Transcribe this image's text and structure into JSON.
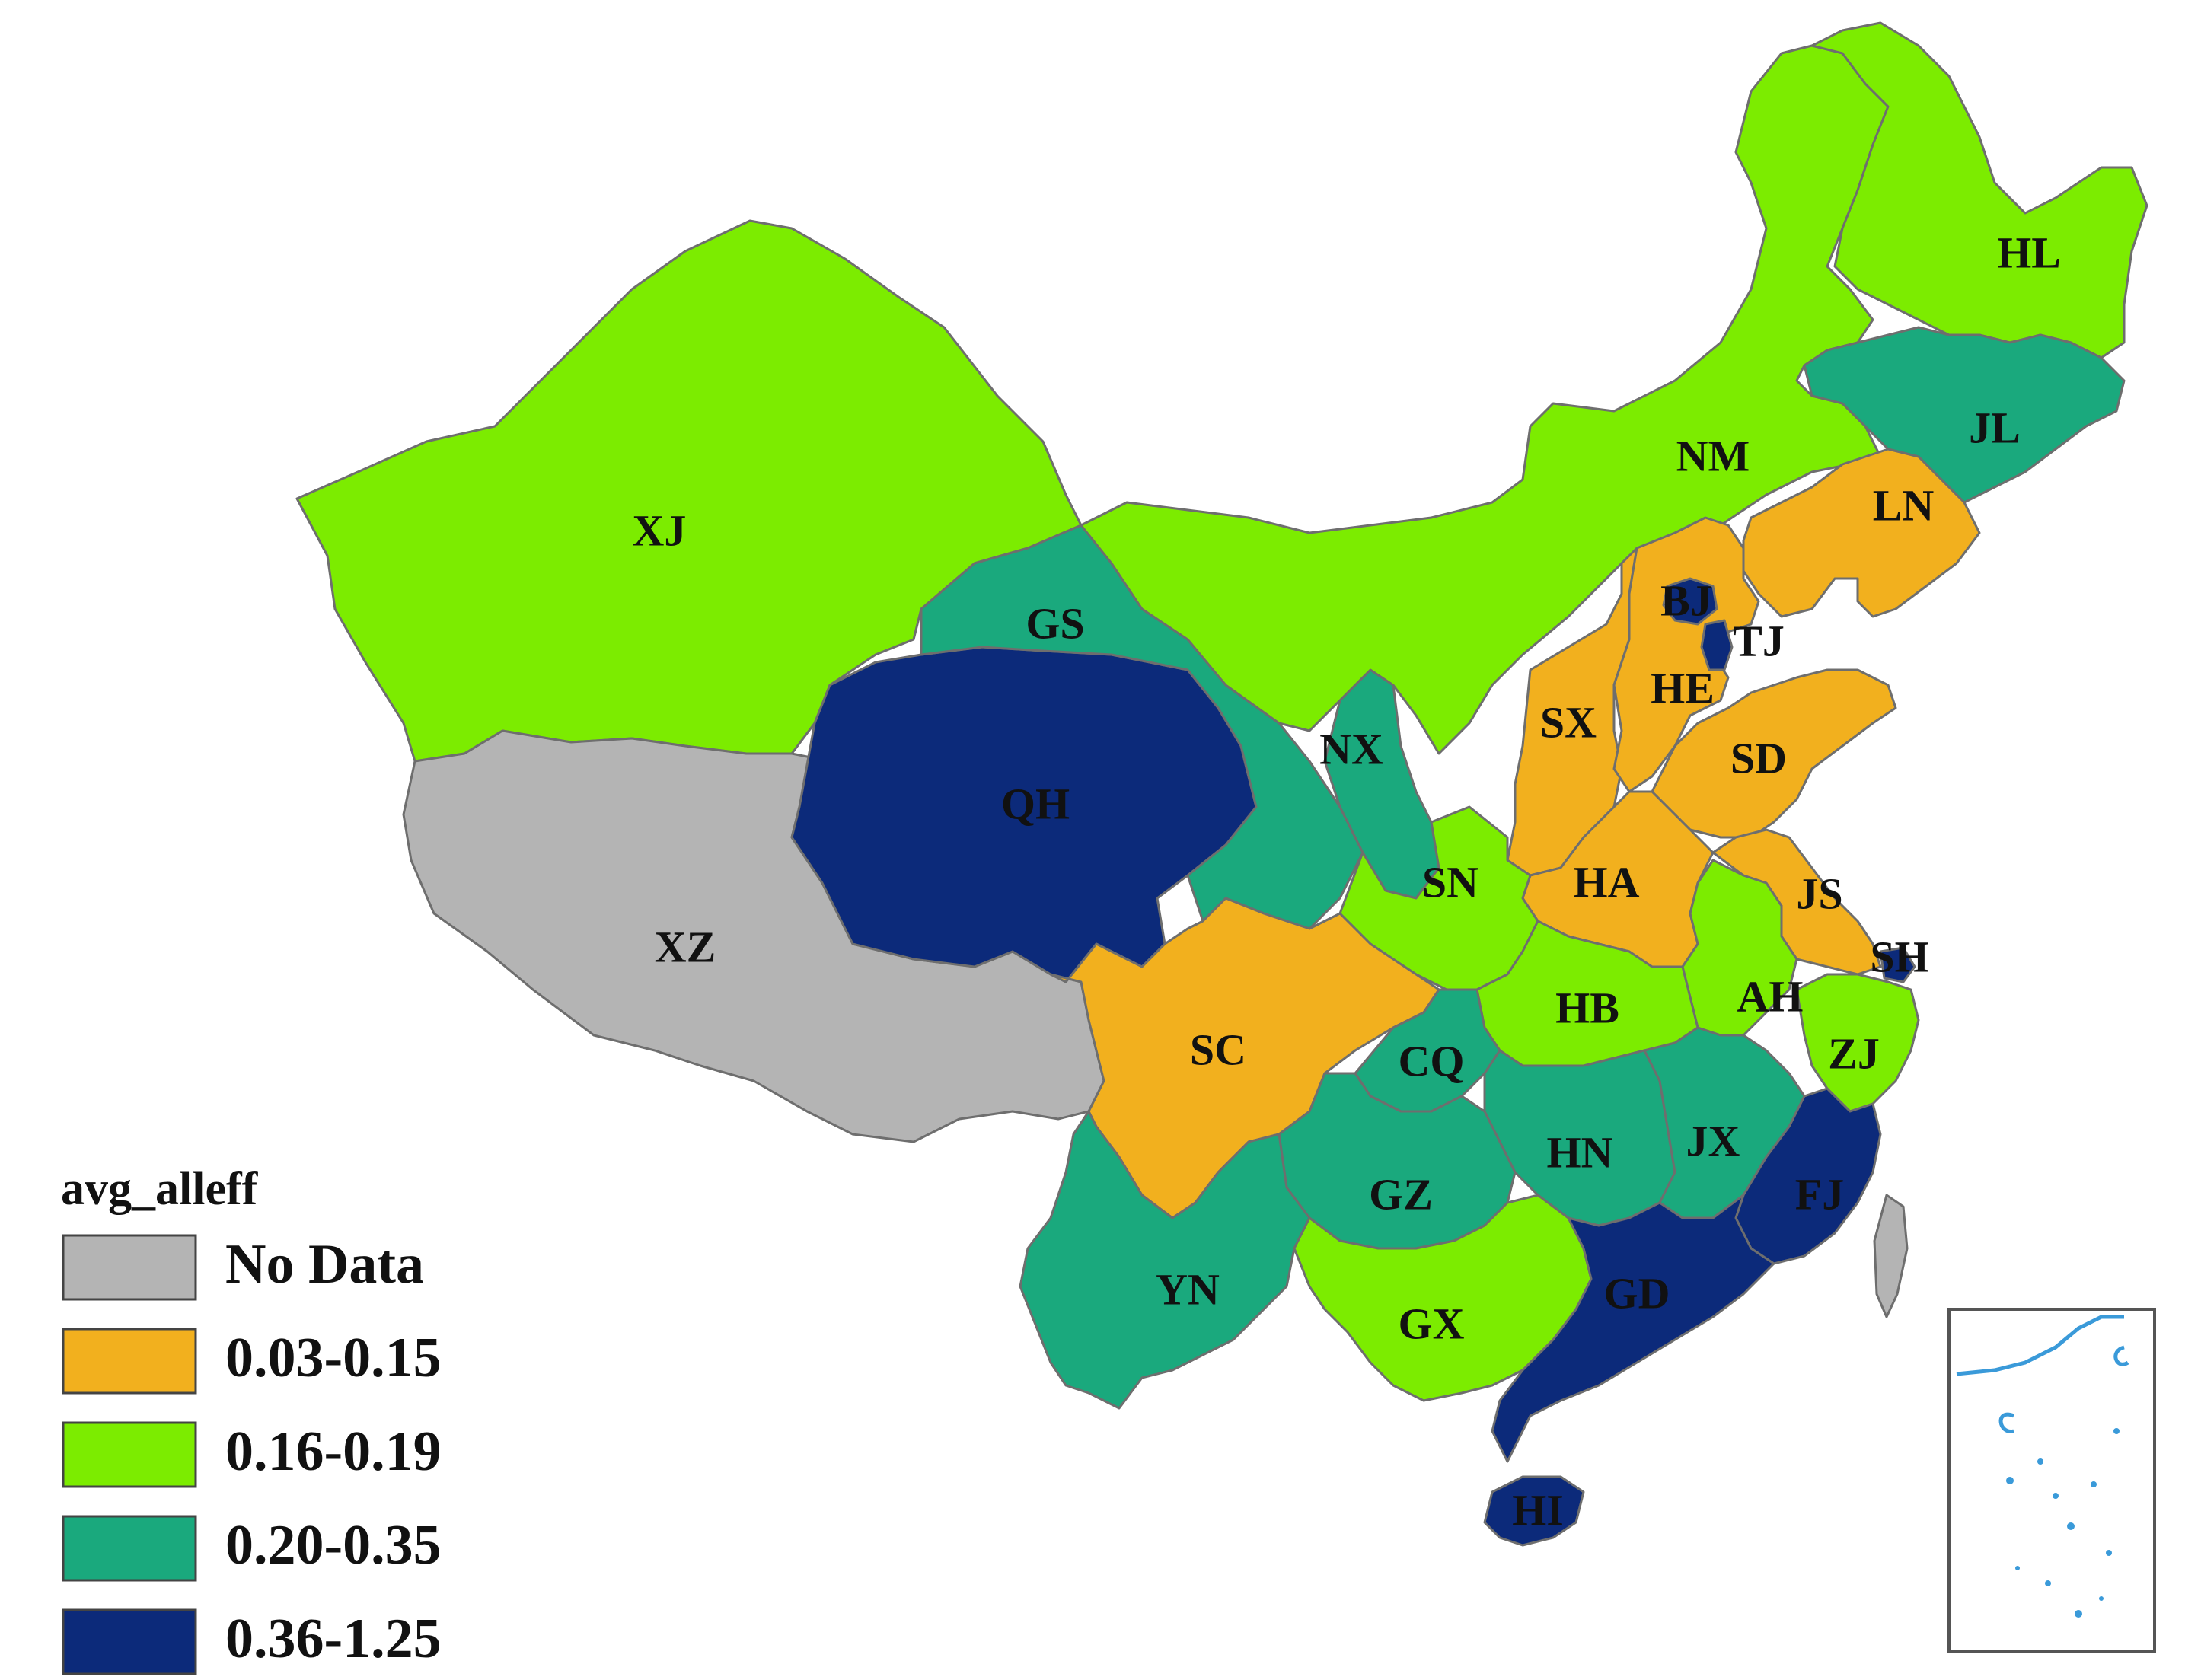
{
  "map": {
    "colors": {
      "no_data": "#b4b4b4",
      "c1": "#f2b01e",
      "c2": "#7cec00",
      "c3": "#1aa97d",
      "c4": "#0c2a7a"
    },
    "provinces": [
      {
        "code": "HL",
        "class": "c2"
      },
      {
        "code": "JL",
        "class": "c3"
      },
      {
        "code": "LN",
        "class": "c1"
      },
      {
        "code": "NM",
        "class": "c2"
      },
      {
        "code": "XJ",
        "class": "c2"
      },
      {
        "code": "XZ",
        "class": "no_data"
      },
      {
        "code": "QH",
        "class": "c4"
      },
      {
        "code": "GS",
        "class": "c3"
      },
      {
        "code": "NX",
        "class": "c3"
      },
      {
        "code": "SN",
        "class": "c2"
      },
      {
        "code": "SX",
        "class": "c1"
      },
      {
        "code": "HE",
        "class": "c1"
      },
      {
        "code": "BJ",
        "class": "c4"
      },
      {
        "code": "TJ",
        "class": "c4"
      },
      {
        "code": "SD",
        "class": "c1"
      },
      {
        "code": "HA",
        "class": "c1"
      },
      {
        "code": "JS",
        "class": "c1"
      },
      {
        "code": "SH",
        "class": "c4"
      },
      {
        "code": "AH",
        "class": "c2"
      },
      {
        "code": "HB",
        "class": "c2"
      },
      {
        "code": "ZJ",
        "class": "c2"
      },
      {
        "code": "SC",
        "class": "c1"
      },
      {
        "code": "CQ",
        "class": "c3"
      },
      {
        "code": "HN",
        "class": "c3"
      },
      {
        "code": "JX",
        "class": "c3"
      },
      {
        "code": "FJ",
        "class": "c4"
      },
      {
        "code": "GZ",
        "class": "c3"
      },
      {
        "code": "YN",
        "class": "c3"
      },
      {
        "code": "GX",
        "class": "c2"
      },
      {
        "code": "GD",
        "class": "c4"
      },
      {
        "code": "HI",
        "class": "c4"
      }
    ]
  },
  "legend": {
    "title": "avg_alleff",
    "items": [
      {
        "label": "No Data",
        "class": "no_data"
      },
      {
        "label": "0.03-0.15",
        "class": "c1"
      },
      {
        "label": "0.16-0.19",
        "class": "c2"
      },
      {
        "label": "0.20-0.35",
        "class": "c3"
      },
      {
        "label": "0.36-1.25",
        "class": "c4"
      }
    ]
  }
}
